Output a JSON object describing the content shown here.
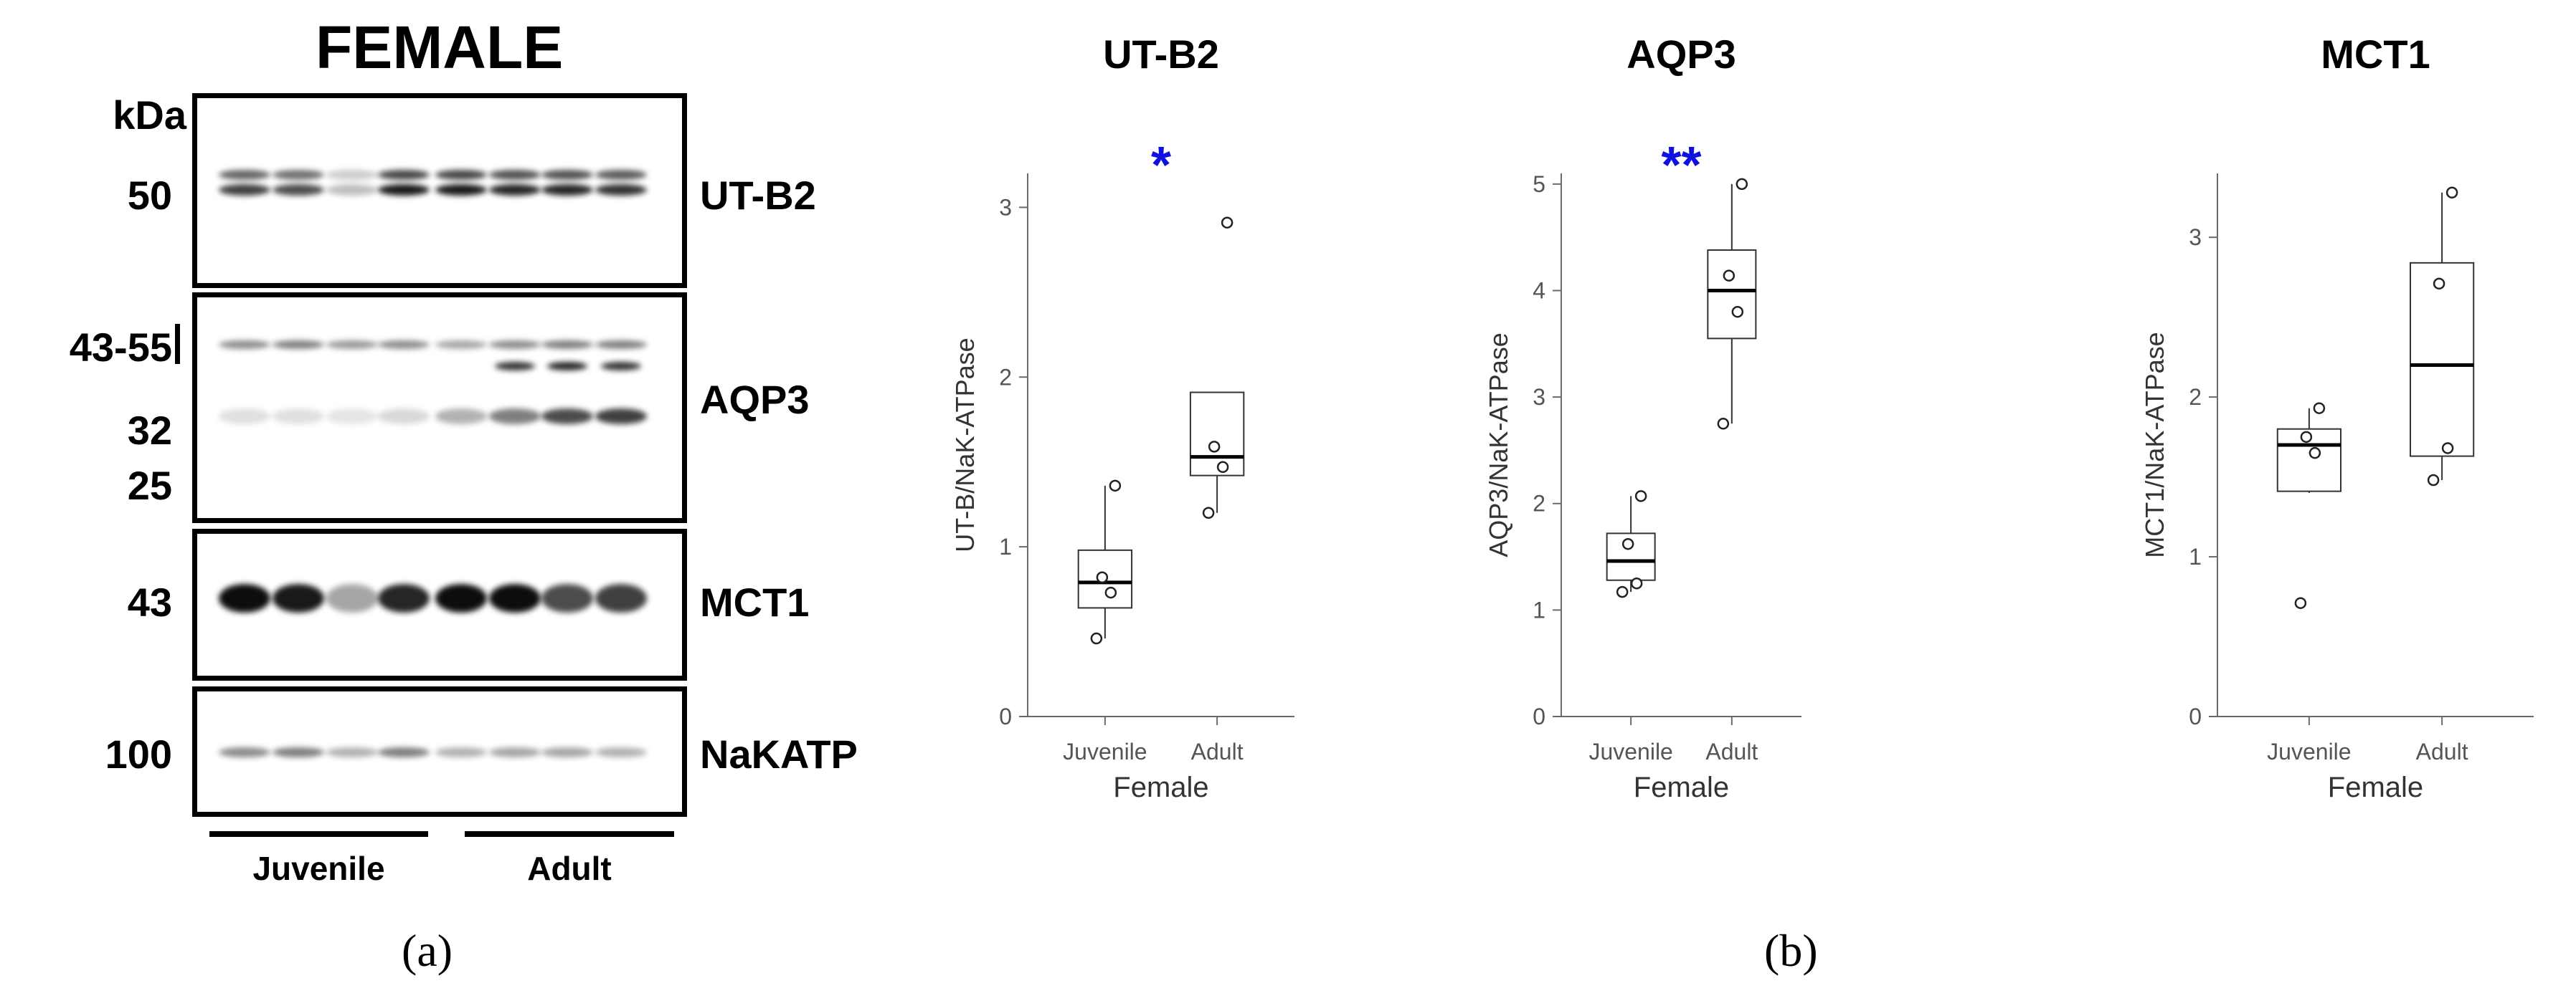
{
  "western_blot": {
    "title": "FEMALE",
    "kda_label": "kDa",
    "markers": {
      "utb2": "50",
      "aqp3_range": "43-55",
      "aqp3_32": "32",
      "aqp3_25": "25",
      "mct1": "43",
      "nakatp": "100"
    },
    "proteins": {
      "utb2": "UT-B2",
      "aqp3": "AQP3",
      "mct1": "MCT1",
      "nakatp": "NaKATP"
    },
    "groups": {
      "juvenile": "Juvenile",
      "adult": "Adult"
    },
    "lane_count": 8
  },
  "panel_labels": {
    "a": "(a)",
    "b": "(b)"
  },
  "chart_data": [
    {
      "type": "box",
      "title": "UT-B2",
      "xlabel": "Female",
      "ylabel": "UT-B/NaK-ATPase",
      "categories": [
        "Juvenile",
        "Adult"
      ],
      "ylim": [
        0,
        3.2
      ],
      "yticks": [
        0,
        1,
        2,
        3
      ],
      "boxes": [
        {
          "group": "Juvenile",
          "min": 0.46,
          "q1": 0.64,
          "median": 0.79,
          "q3": 0.98,
          "max": 1.36,
          "points": [
            0.46,
            0.73,
            0.82,
            1.36
          ]
        },
        {
          "group": "Adult",
          "min": 1.2,
          "q1": 1.42,
          "median": 1.53,
          "q3": 1.91,
          "max": 1.91,
          "points": [
            1.2,
            1.47,
            1.59,
            2.91
          ]
        }
      ],
      "significance": "*",
      "significance_color": "#1010e0"
    },
    {
      "type": "box",
      "title": "AQP3",
      "xlabel": "Female",
      "ylabel": "AQP3/NaK-ATPase",
      "categories": [
        "Juvenile",
        "Adult"
      ],
      "ylim": [
        0,
        5.1
      ],
      "yticks": [
        0,
        1,
        2,
        3,
        4,
        5
      ],
      "boxes": [
        {
          "group": "Juvenile",
          "min": 1.17,
          "q1": 1.28,
          "median": 1.46,
          "q3": 1.72,
          "max": 2.07,
          "points": [
            1.17,
            1.25,
            1.62,
            2.07
          ]
        },
        {
          "group": "Adult",
          "min": 2.75,
          "q1": 3.55,
          "median": 4.0,
          "q3": 4.38,
          "max": 5.0,
          "points": [
            2.75,
            3.8,
            4.14,
            5.0
          ]
        }
      ],
      "significance": "**",
      "significance_color": "#1010e0"
    },
    {
      "type": "box",
      "title": "MCT1",
      "xlabel": "Female",
      "ylabel": "MCT1/NaK-ATPase",
      "categories": [
        "Juvenile",
        "Adult"
      ],
      "ylim": [
        0,
        3.4
      ],
      "yticks": [
        0,
        1,
        2,
        3
      ],
      "boxes": [
        {
          "group": "Juvenile",
          "min": 1.4,
          "q1": 1.41,
          "median": 1.7,
          "q3": 1.8,
          "max": 1.93,
          "points": [
            0.71,
            1.65,
            1.75,
            1.93
          ]
        },
        {
          "group": "Adult",
          "min": 1.48,
          "q1": 1.63,
          "median": 2.2,
          "q3": 2.84,
          "max": 3.28,
          "points": [
            1.48,
            1.68,
            2.71,
            3.28
          ]
        }
      ],
      "significance": "",
      "significance_color": "#1010e0"
    }
  ]
}
